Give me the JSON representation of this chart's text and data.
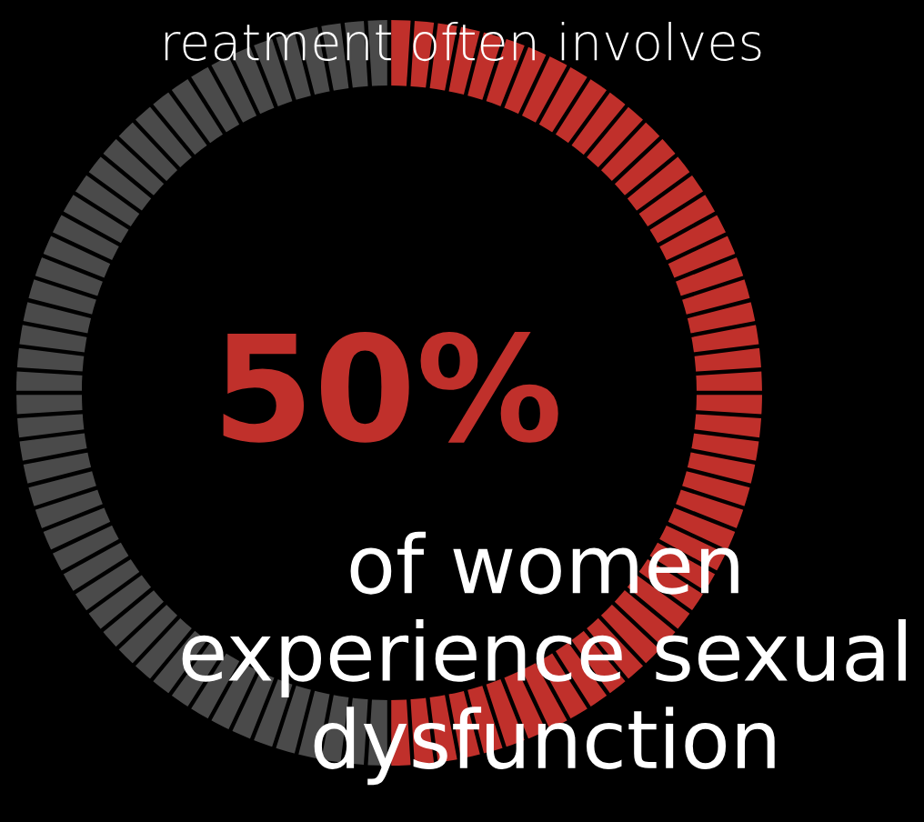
{
  "chart_data": {
    "type": "donut",
    "categories": [
      null,
      null
    ],
    "values": [
      50,
      50
    ],
    "colors": [
      "#c0302b",
      "#4a4a4a"
    ],
    "annotations": [
      "reatment often involves",
      "50%",
      "of women\nexperience sexual\ndysfunction"
    ]
  }
}
